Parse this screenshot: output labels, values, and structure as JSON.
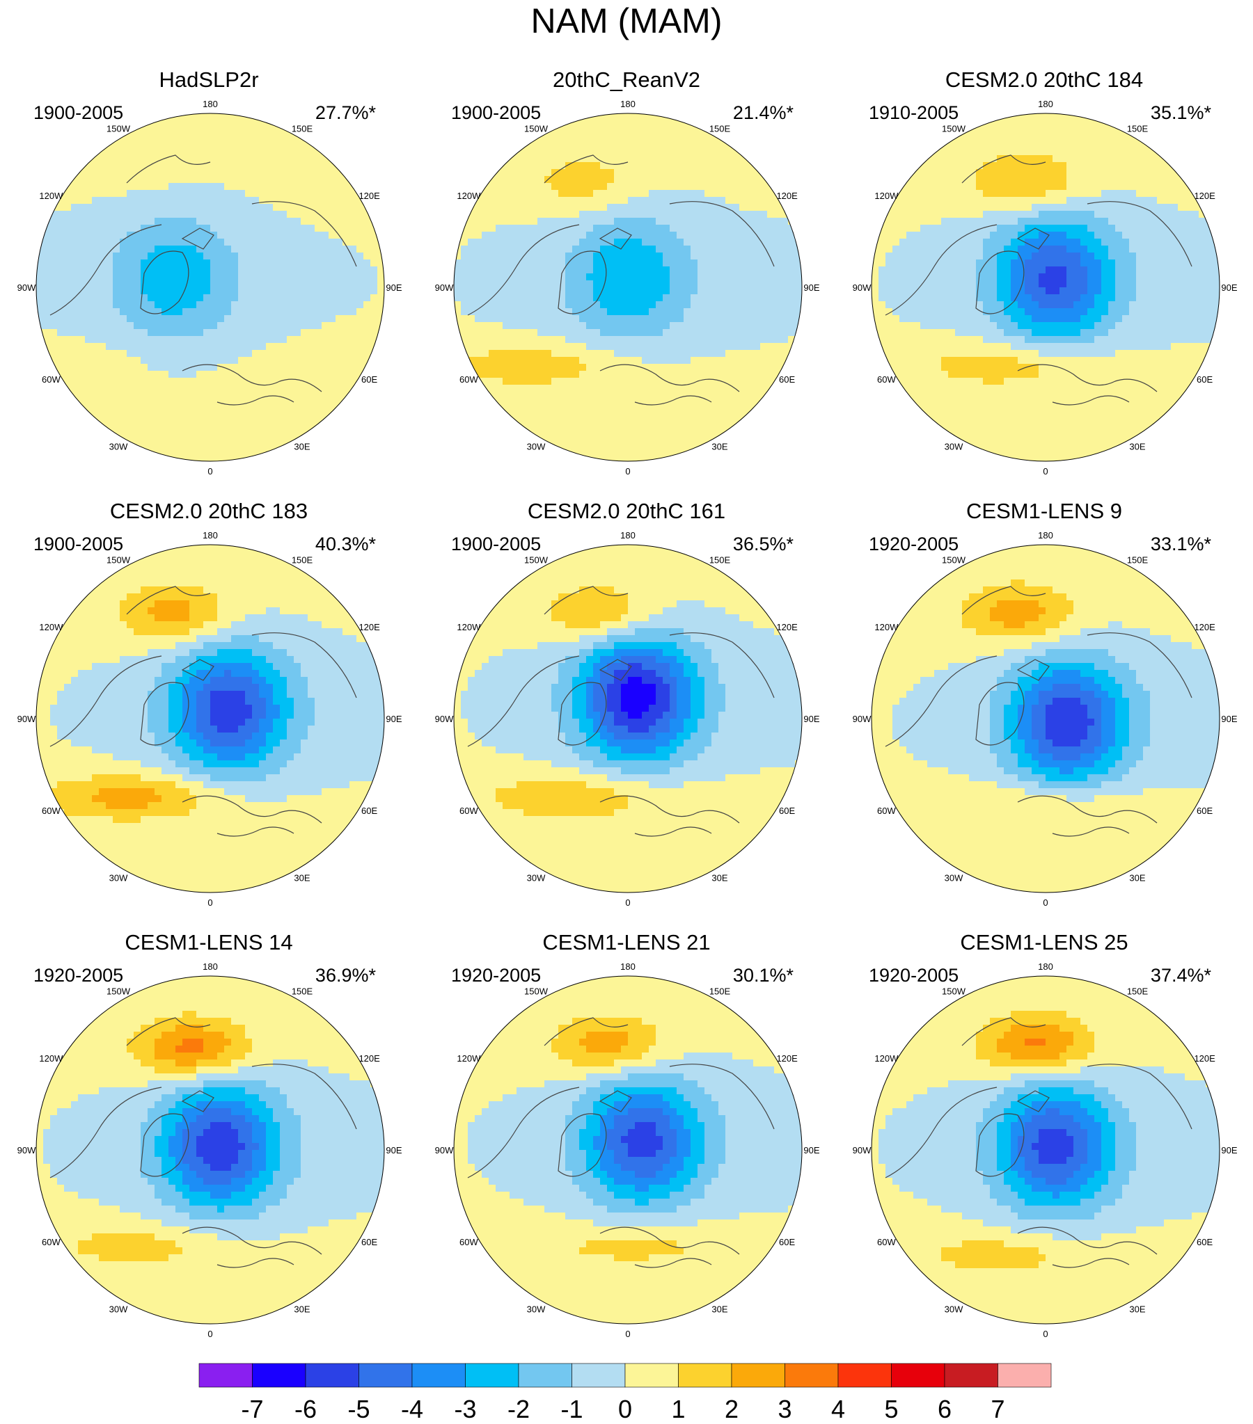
{
  "title": "NAM (MAM)",
  "colors": {
    "levels": [
      "#8a1ff0",
      "#1a00ff",
      "#2b41e6",
      "#3173ea",
      "#1c8ef6",
      "#00bff5",
      "#73c7f0",
      "#b3ddf2",
      "#fcf597",
      "#fcd22e",
      "#fba90a",
      "#fb7a0b",
      "#fc340c",
      "#e7000b",
      "#c81c22",
      "#fbafad"
    ],
    "coast": "#444444",
    "outline": "#000000"
  },
  "lon_labels": [
    "180",
    "150E",
    "120E",
    "90E",
    "60E",
    "30E",
    "0",
    "30W",
    "60W",
    "90W",
    "120W",
    "150W"
  ],
  "panels": [
    {
      "title": "HadSLP2r",
      "period": "1900-2005",
      "variance": "27.7%*",
      "pattern": {
        "high_n": 0.2,
        "high_n_x": -0.35,
        "high_n_y": -0.6,
        "low": 2.2,
        "low_x": -0.2,
        "low_y": -0.05,
        "high_s": 0.3,
        "high_s_x": -0.6,
        "high_s_y": 0.4,
        "neg_halo": 1
      }
    },
    {
      "title": "20thC_ReanV2",
      "period": "1900-2005",
      "variance": "21.4%*",
      "pattern": {
        "high_n": 1.4,
        "high_n_x": -0.25,
        "high_n_y": -0.6,
        "low": 2.5,
        "low_x": 0.0,
        "low_y": -0.05,
        "high_s": 1.5,
        "high_s_x": -0.55,
        "high_s_y": 0.45,
        "neg_halo": 1
      }
    },
    {
      "title": "CESM2.0 20thC 184",
      "period": "1910-2005",
      "variance": "35.1%*",
      "pattern": {
        "high_n": 2.2,
        "high_n_x": -0.1,
        "high_n_y": -0.6,
        "low": 4.8,
        "low_x": 0.05,
        "low_y": -0.05,
        "high_s": 1.6,
        "high_s_x": -0.2,
        "high_s_y": 0.45,
        "neg_halo": 1
      }
    },
    {
      "title": "CESM2.0 20thC 183",
      "period": "1900-2005",
      "variance": "40.3%*",
      "pattern": {
        "high_n": 2.4,
        "high_n_x": -0.2,
        "high_n_y": -0.6,
        "low": 5.2,
        "low_x": 0.1,
        "low_y": -0.05,
        "high_s": 2.3,
        "high_s_x": -0.45,
        "high_s_y": 0.45,
        "neg_halo": 1
      }
    },
    {
      "title": "CESM2.0 20thC 161",
      "period": "1900-2005",
      "variance": "36.5%*",
      "pattern": {
        "high_n": 2.3,
        "high_n_x": -0.15,
        "high_n_y": -0.6,
        "low": 6.1,
        "low_x": 0.05,
        "low_y": -0.12,
        "high_s": 1.8,
        "high_s_x": -0.3,
        "high_s_y": 0.45,
        "neg_halo": 1
      }
    },
    {
      "title": "CESM1-LENS 9",
      "period": "1920-2005",
      "variance": "33.1%*",
      "pattern": {
        "high_n": 2.5,
        "high_n_x": -0.15,
        "high_n_y": -0.6,
        "low": 5.4,
        "low_x": 0.12,
        "low_y": 0.02,
        "high_s": 1.4,
        "high_s_x": 0.0,
        "high_s_y": 0.5,
        "neg_halo": 1
      }
    },
    {
      "title": "CESM1-LENS 14",
      "period": "1920-2005",
      "variance": "36.9%*",
      "pattern": {
        "high_n": 3.4,
        "high_n_x": -0.1,
        "high_n_y": -0.58,
        "low": 5.3,
        "low_x": 0.05,
        "low_y": -0.02,
        "high_s": 1.3,
        "high_s_x": -0.4,
        "high_s_y": 0.55,
        "neg_halo": 1
      }
    },
    {
      "title": "CESM1-LENS 21",
      "period": "1920-2005",
      "variance": "30.1%*",
      "pattern": {
        "high_n": 2.6,
        "high_n_x": -0.1,
        "high_n_y": -0.6,
        "low": 5.0,
        "low_x": 0.08,
        "low_y": -0.05,
        "high_s": 1.3,
        "high_s_x": 0.05,
        "high_s_y": 0.55,
        "neg_halo": 1
      }
    },
    {
      "title": "CESM1-LENS 25",
      "period": "1920-2005",
      "variance": "37.4%*",
      "pattern": {
        "high_n": 3.3,
        "high_n_x": -0.05,
        "high_n_y": -0.6,
        "low": 5.1,
        "low_x": 0.05,
        "low_y": -0.02,
        "high_s": 1.3,
        "high_s_x": -0.25,
        "high_s_y": 0.6,
        "neg_halo": 1
      }
    }
  ],
  "colorbar": {
    "labels": [
      "-7",
      "-6",
      "-5",
      "-4",
      "-3",
      "-2",
      "-1",
      "0",
      "1",
      "2",
      "3",
      "4",
      "5",
      "6",
      "7"
    ]
  }
}
